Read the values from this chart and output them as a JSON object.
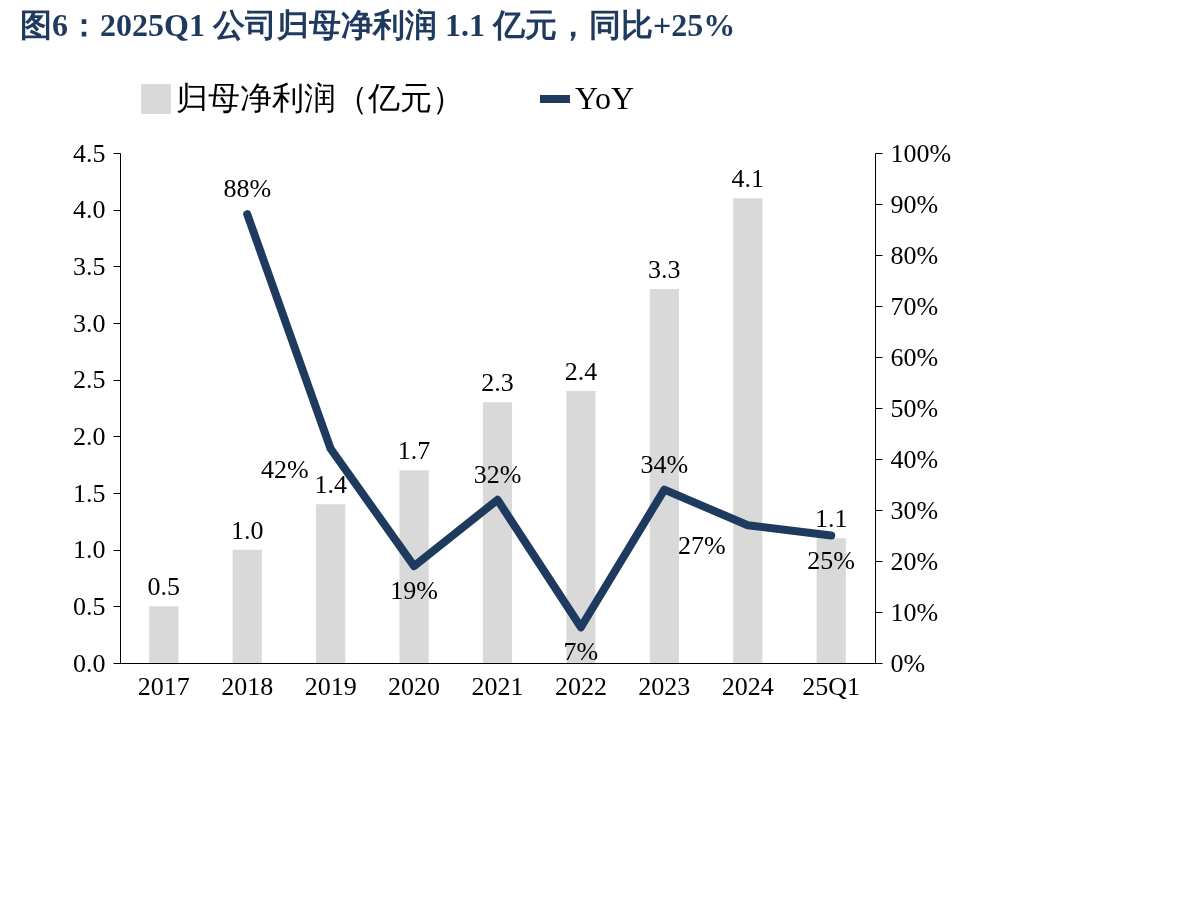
{
  "chart_data": {
    "type": "bar",
    "title": "图6：2025Q1 公司归母净利润 1.1 亿元，同比+25%",
    "categories": [
      "2017",
      "2018",
      "2019",
      "2020",
      "2021",
      "2022",
      "2023",
      "2024",
      "25Q1"
    ],
    "series": [
      {
        "name": "归母净利润（亿元）",
        "color": "#d9d9d9",
        "values": [
          0.5,
          1.0,
          1.4,
          1.7,
          2.3,
          2.4,
          3.3,
          4.1,
          1.1
        ],
        "value_labels": [
          "0.5",
          "1.0",
          "1.4",
          "1.7",
          "2.3",
          "2.4",
          "3.3",
          "4.1",
          "1.1"
        ]
      },
      {
        "name": "YoY",
        "type": "line",
        "axis": "y2",
        "color": "#1f3a5f",
        "values": [
          null,
          88,
          42,
          19,
          32,
          7,
          34,
          27,
          25
        ],
        "value_labels": [
          null,
          "88%",
          "42%",
          "19%",
          "32%",
          "7%",
          "34%",
          "27%",
          "25%"
        ]
      }
    ],
    "ylim": [
      0,
      4.5
    ],
    "yticks": [
      {
        "value": 0,
        "label": "0.0"
      },
      {
        "value": 0.5,
        "label": "0.5"
      },
      {
        "value": 1,
        "label": "1.0"
      },
      {
        "value": 1.5,
        "label": "1.5"
      },
      {
        "value": 2,
        "label": "2.0"
      },
      {
        "value": 2.5,
        "label": "2.5"
      },
      {
        "value": 3,
        "label": "3.0"
      },
      {
        "value": 3.5,
        "label": "3.5"
      },
      {
        "value": 4,
        "label": "4.0"
      },
      {
        "value": 4.5,
        "label": "4.5"
      }
    ],
    "y2lim": [
      0,
      100
    ],
    "y2ticks": [
      {
        "value": 0,
        "label": "0%"
      },
      {
        "value": 10,
        "label": "10%"
      },
      {
        "value": 20,
        "label": "20%"
      },
      {
        "value": 30,
        "label": "30%"
      },
      {
        "value": 40,
        "label": "40%"
      },
      {
        "value": 50,
        "label": "50%"
      },
      {
        "value": 60,
        "label": "60%"
      },
      {
        "value": 70,
        "label": "70%"
      },
      {
        "value": 80,
        "label": "80%"
      },
      {
        "value": 90,
        "label": "90%"
      },
      {
        "value": 100,
        "label": "100%"
      }
    ],
    "legend": "top",
    "grid": false,
    "marker": "none",
    "line_style": "solid"
  }
}
